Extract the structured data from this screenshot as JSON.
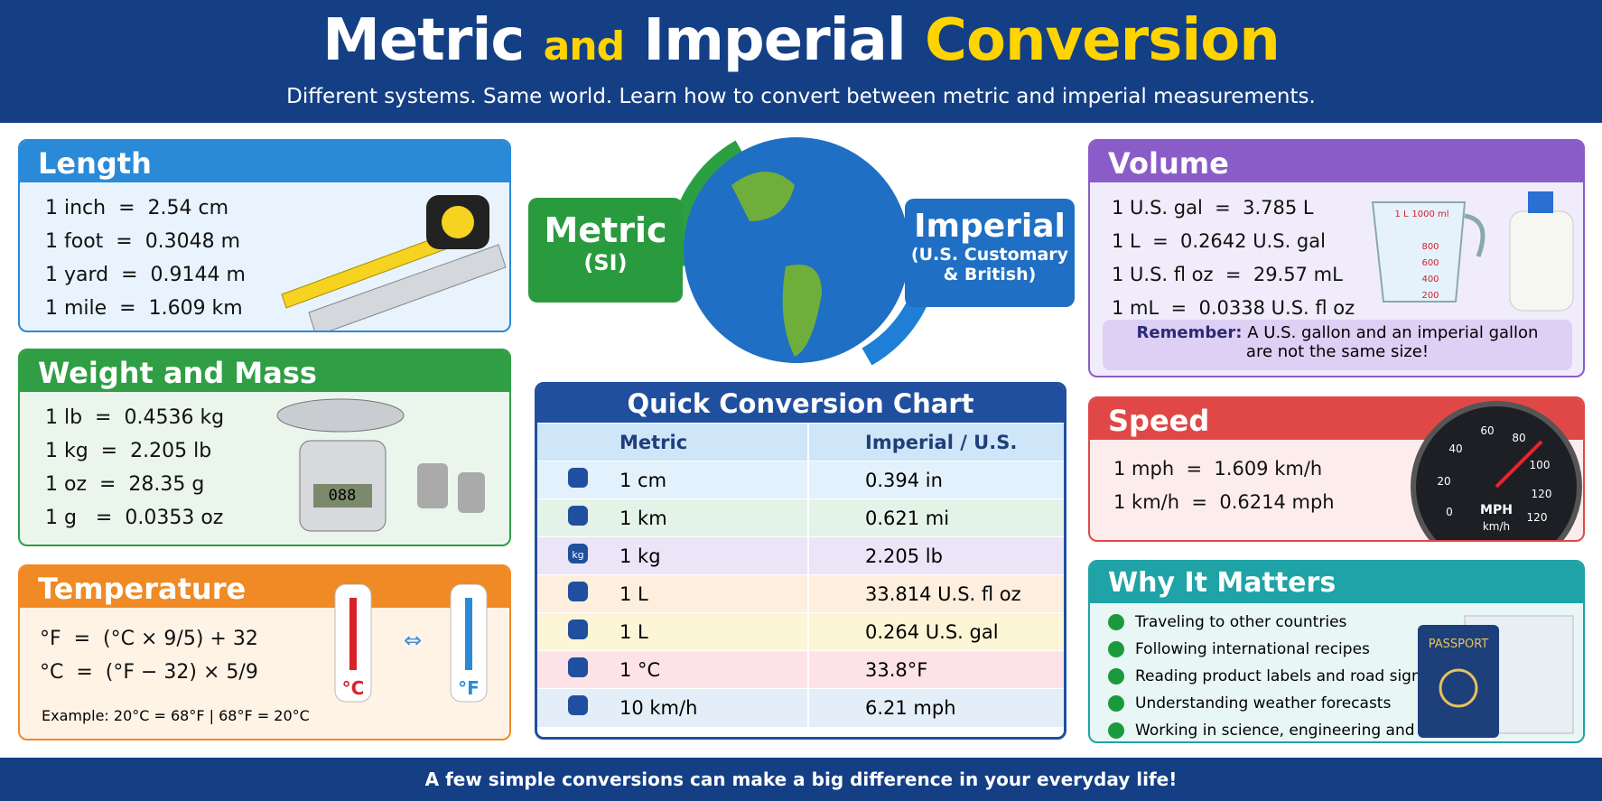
{
  "header": {
    "title_1": "Metric",
    "title_2": "and",
    "title_3": "Imperial",
    "title_4": "Conversion",
    "subtitle": "Different systems. Same world. Learn how to convert between metric and imperial measurements."
  },
  "length": {
    "title": "Length",
    "rows": [
      "1 inch  =  2.54 cm",
      "1 foot  =  0.3048 m",
      "1 yard  =  0.9144 m",
      "1 mile  =  1.609 km"
    ]
  },
  "weight": {
    "title": "Weight and Mass",
    "rows": [
      "1 lb  =  0.4536 kg",
      "1 kg  =  2.205 lb",
      "1 oz  =  28.35 g",
      "1 g   =  0.0353 oz"
    ],
    "scale_display": "088"
  },
  "temperature": {
    "title": "Temperature",
    "rows": [
      "°F  =  (°C × 9/5) + 32",
      "°C  =  (°F − 32) × 5/9"
    ],
    "example": "Example: 20°C = 68°F  |  68°F = 20°C",
    "celsius": "°C",
    "fahrenheit": "°F"
  },
  "center": {
    "metric": "Metric",
    "metric_sub": "(SI)",
    "imperial": "Imperial",
    "imperial_sub_1": "(U.S. Customary",
    "imperial_sub_2": "& British)"
  },
  "quick_chart": {
    "title": "Quick Conversion Chart",
    "headers": [
      "Metric",
      "Imperial / U.S."
    ],
    "kg_icon": "kg",
    "rows": [
      [
        "1 cm",
        "0.394 in"
      ],
      [
        "1 km",
        "0.621 mi"
      ],
      [
        "1 kg",
        "2.205 lb"
      ],
      [
        "1 L",
        "33.814 U.S. fl oz"
      ],
      [
        "1 L",
        "0.264 U.S. gal"
      ],
      [
        "1 °C",
        "33.8°F"
      ],
      [
        "10 km/h",
        "6.21 mph"
      ]
    ]
  },
  "volume": {
    "title": "Volume",
    "rows": [
      "1 U.S. gal  =  3.785 L",
      "1 L  =  0.2642 U.S. gal",
      "1 U.S. fl oz  =  29.57 mL",
      "1 mL  =  0.0338 U.S. fl oz"
    ],
    "remember": "Remember:",
    "note_1": "A U.S. gallon and an imperial gallon",
    "note_2": "are not the same size!",
    "cup_labels": [
      "1 L",
      "1000 ml",
      "800",
      "600",
      "400",
      "200"
    ]
  },
  "speed": {
    "title": "Speed",
    "rows": [
      "1 mph  =  1.609 km/h",
      "1 km/h  =  0.6214 mph"
    ],
    "gauge_labels": [
      "0",
      "20",
      "40",
      "60",
      "80",
      "100",
      "120",
      "120"
    ],
    "gauge_unit_1": "MPH",
    "gauge_unit_2": "km/h"
  },
  "why": {
    "title": "Why It Matters",
    "items": [
      "Traveling to other countries",
      "Following international recipes",
      "Reading product labels and road signs",
      "Understanding weather forecasts",
      "Working in science, engineering and trade"
    ],
    "passport": "PASSPORT"
  },
  "footer": {
    "text": "A few simple conversions can make a big difference in your everyday life!"
  }
}
